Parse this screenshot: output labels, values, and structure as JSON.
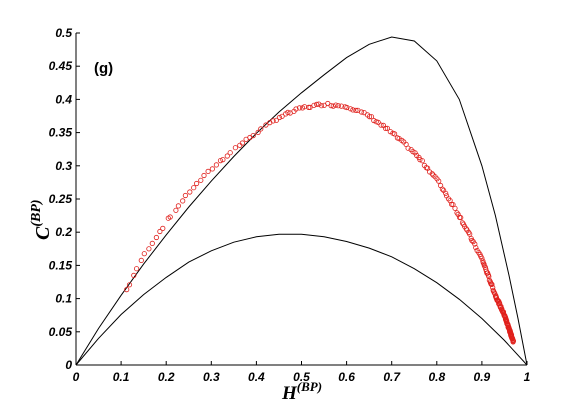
{
  "chart_data": {
    "type": "scatter",
    "panel_label": "(g)",
    "xlabel": {
      "main": "H",
      "sup": "(BP)"
    },
    "ylabel": {
      "main": "C",
      "sup": "(BP)"
    },
    "xlim": [
      0,
      1
    ],
    "ylim": [
      0,
      0.5
    ],
    "xticks": [
      0,
      0.1,
      0.2,
      0.3,
      0.4,
      0.5,
      0.6,
      0.7,
      0.8,
      0.9,
      1
    ],
    "xtick_labels": [
      "0",
      "0.1",
      "0.2",
      "0.3",
      "0.4",
      "0.5",
      "0.6",
      "0.7",
      "0.8",
      "0.9",
      "1"
    ],
    "yticks": [
      0,
      0.05,
      0.1,
      0.15,
      0.2,
      0.25,
      0.3,
      0.35,
      0.4,
      0.45,
      0.5
    ],
    "ytick_labels": [
      "0",
      "0.05",
      "0.1",
      "0.15",
      "0.2",
      "0.25",
      "0.3",
      "0.35",
      "0.4",
      "0.45",
      "0.5"
    ],
    "grid": false,
    "colors": {
      "points": "#e0211d",
      "curves": "#000000",
      "axes": "#000000"
    },
    "bounds": {
      "upper": {
        "x": [
          0,
          0.05,
          0.1,
          0.15,
          0.2,
          0.25,
          0.3,
          0.35,
          0.4,
          0.45,
          0.5,
          0.55,
          0.6,
          0.65,
          0.7,
          0.75,
          0.8,
          0.85,
          0.9,
          0.93,
          0.96,
          0.98,
          1
        ],
        "y": [
          0,
          0.055,
          0.105,
          0.152,
          0.196,
          0.238,
          0.277,
          0.314,
          0.349,
          0.381,
          0.41,
          0.437,
          0.463,
          0.483,
          0.494,
          0.488,
          0.458,
          0.4,
          0.3,
          0.225,
          0.135,
          0.07,
          0
        ]
      },
      "lower": {
        "x": [
          0,
          0.05,
          0.1,
          0.15,
          0.2,
          0.25,
          0.3,
          0.35,
          0.4,
          0.45,
          0.5,
          0.55,
          0.6,
          0.65,
          0.7,
          0.75,
          0.8,
          0.85,
          0.9,
          0.95,
          1
        ],
        "y": [
          0,
          0.04,
          0.076,
          0.106,
          0.132,
          0.155,
          0.172,
          0.185,
          0.193,
          0.197,
          0.197,
          0.193,
          0.186,
          0.176,
          0.163,
          0.145,
          0.124,
          0.099,
          0.07,
          0.037,
          0
        ]
      }
    },
    "scatter_curve": {
      "x": [
        0.11,
        0.15,
        0.2,
        0.25,
        0.3,
        0.35,
        0.4,
        0.45,
        0.5,
        0.55,
        0.6,
        0.65,
        0.7,
        0.75,
        0.8,
        0.85,
        0.9,
        0.93,
        0.95,
        0.96,
        0.97
      ],
      "y": [
        0.11,
        0.165,
        0.215,
        0.26,
        0.295,
        0.325,
        0.35,
        0.373,
        0.387,
        0.393,
        0.39,
        0.375,
        0.35,
        0.32,
        0.28,
        0.225,
        0.16,
        0.105,
        0.075,
        0.055,
        0.035
      ]
    },
    "scatter_counts": [
      5,
      6,
      6,
      6,
      6,
      6,
      6,
      8,
      8,
      8,
      8,
      10,
      10,
      12,
      14,
      18,
      22,
      26,
      30,
      30
    ]
  }
}
